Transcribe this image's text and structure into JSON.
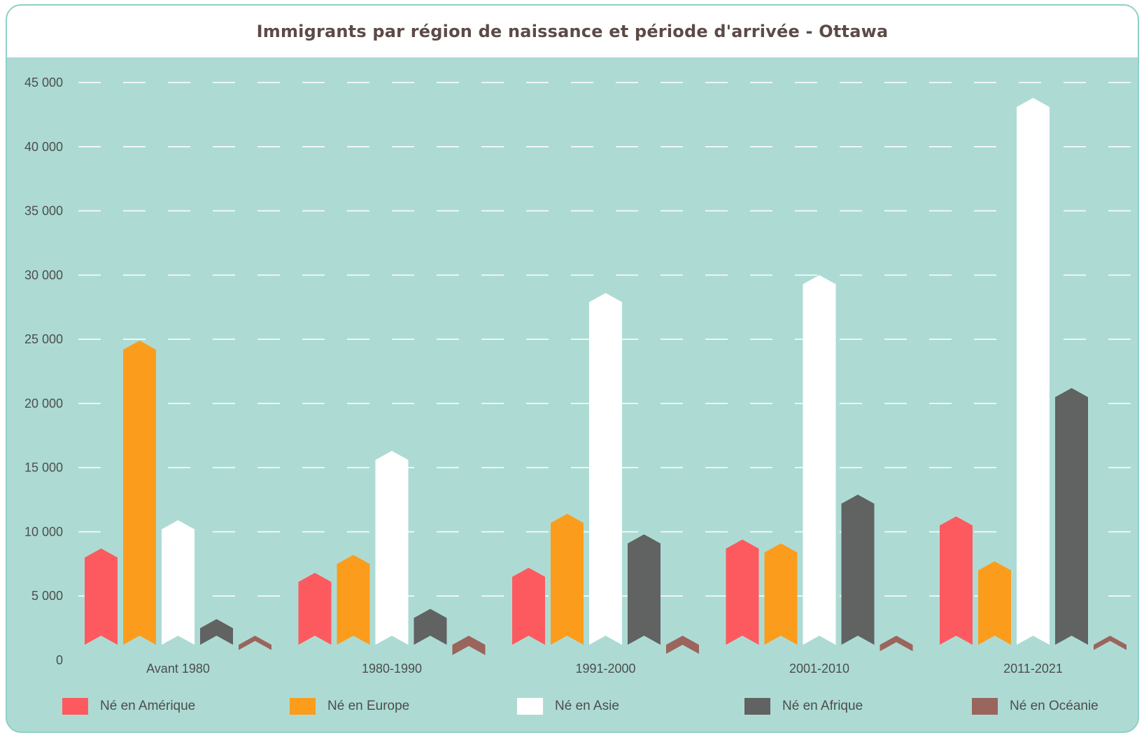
{
  "header": {
    "title": "Immigrants par région de naissance et période d'arrivée - Ottawa"
  },
  "chart_data": {
    "type": "bar",
    "title": "Immigrants par région de naissance et période d'arrivée - Ottawa",
    "xlabel": "",
    "ylabel": "",
    "ylim": [
      0,
      45000
    ],
    "yticks": [
      0,
      5000,
      10000,
      15000,
      20000,
      25000,
      30000,
      35000,
      40000,
      45000
    ],
    "ytick_labels": [
      "0",
      "5 000",
      "10 000",
      "15 000",
      "20 000",
      "25 000",
      "30 000",
      "35 000",
      "40 000",
      "45 000"
    ],
    "grid": "horizontal dashed",
    "legend_position": "bottom",
    "categories": [
      "Avant 1980",
      "1980-1990",
      "1991-2000",
      "2001-2010",
      "2011-2021"
    ],
    "series": [
      {
        "name": "Né en Amérique",
        "color": "#fd5a5f",
        "values": [
          8700,
          6800,
          7200,
          9400,
          11200
        ]
      },
      {
        "name": "Né en Europe",
        "color": "#fc9c1c",
        "values": [
          24900,
          8200,
          11400,
          9100,
          7700
        ]
      },
      {
        "name": "Né en Asie",
        "color": "#ffffff",
        "values": [
          10900,
          16300,
          28600,
          30000,
          43800
        ]
      },
      {
        "name": "Né en Afrique",
        "color": "#616262",
        "values": [
          3200,
          4000,
          9800,
          12900,
          21200
        ]
      },
      {
        "name": "Né en Océanie",
        "color": "#9a655d",
        "values": [
          1500,
          1100,
          1200,
          1400,
          1500
        ]
      }
    ]
  }
}
